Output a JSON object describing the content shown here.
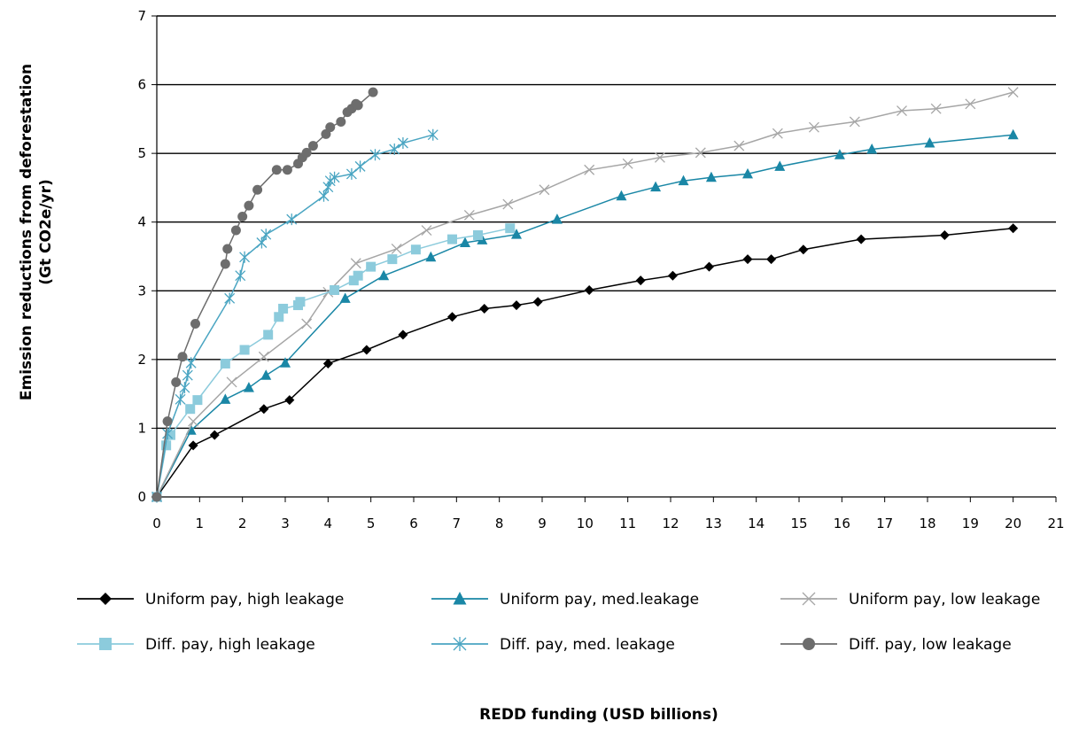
{
  "chart_data": {
    "type": "line",
    "xlabel": "REDD funding (USD billions)",
    "ylabel": [
      "Emission reductions from deforestation",
      "(Gt CO2e/yr)"
    ],
    "xlim": [
      0,
      21
    ],
    "ylim": [
      0,
      7
    ],
    "x_ticks": [
      "0",
      "1",
      "2",
      "3",
      "4",
      "5",
      "6",
      "7",
      "8",
      "9",
      "10",
      "11",
      "12",
      "13",
      "14",
      "15",
      "16",
      "17",
      "18",
      "19",
      "20",
      "21"
    ],
    "y_ticks": [
      "0",
      "1",
      "2",
      "3",
      "4",
      "5",
      "6",
      "7"
    ],
    "grid": "horizontal",
    "legend_position": "bottom",
    "series": [
      {
        "name": "Uniform pay, high leakage",
        "color": "#000000",
        "marker": "diamond",
        "points": [
          [
            0,
            0
          ],
          [
            0.85,
            0.75
          ],
          [
            1.35,
            0.9
          ],
          [
            2.5,
            1.28
          ],
          [
            3.1,
            1.41
          ],
          [
            4.0,
            1.94
          ],
          [
            4.9,
            2.14
          ],
          [
            5.75,
            2.36
          ],
          [
            6.9,
            2.62
          ],
          [
            7.65,
            2.74
          ],
          [
            8.4,
            2.79
          ],
          [
            8.9,
            2.84
          ],
          [
            10.1,
            3.01
          ],
          [
            11.3,
            3.15
          ],
          [
            12.05,
            3.22
          ],
          [
            12.9,
            3.35
          ],
          [
            13.8,
            3.46
          ],
          [
            14.35,
            3.46
          ],
          [
            15.1,
            3.6
          ],
          [
            16.45,
            3.75
          ],
          [
            18.4,
            3.81
          ],
          [
            20.0,
            3.91
          ]
        ]
      },
      {
        "name": "Uniform pay, med.leakage",
        "color": "#1a87a6",
        "marker": "triangle",
        "points": [
          [
            0,
            0
          ],
          [
            0.8,
            0.97
          ],
          [
            1.6,
            1.42
          ],
          [
            2.15,
            1.59
          ],
          [
            2.55,
            1.77
          ],
          [
            3.0,
            1.95
          ],
          [
            4.4,
            2.89
          ],
          [
            5.3,
            3.22
          ],
          [
            6.4,
            3.49
          ],
          [
            7.2,
            3.7
          ],
          [
            7.6,
            3.74
          ],
          [
            8.4,
            3.82
          ],
          [
            9.35,
            4.04
          ],
          [
            10.85,
            4.38
          ],
          [
            11.65,
            4.51
          ],
          [
            12.3,
            4.6
          ],
          [
            12.95,
            4.65
          ],
          [
            13.8,
            4.7
          ],
          [
            14.55,
            4.81
          ],
          [
            15.95,
            4.98
          ],
          [
            16.7,
            5.06
          ],
          [
            18.05,
            5.15
          ],
          [
            20.0,
            5.27
          ]
        ]
      },
      {
        "name": "Uniform pay, low leakage",
        "color": "#a6a6a6",
        "marker": "x",
        "points": [
          [
            0,
            0
          ],
          [
            0.85,
            1.1
          ],
          [
            1.75,
            1.67
          ],
          [
            2.5,
            2.04
          ],
          [
            3.5,
            2.52
          ],
          [
            4.0,
            2.98
          ],
          [
            4.65,
            3.4
          ],
          [
            5.6,
            3.61
          ],
          [
            6.3,
            3.88
          ],
          [
            7.3,
            4.1
          ],
          [
            8.2,
            4.26
          ],
          [
            9.05,
            4.47
          ],
          [
            10.1,
            4.76
          ],
          [
            11.0,
            4.85
          ],
          [
            11.75,
            4.94
          ],
          [
            12.7,
            5.01
          ],
          [
            13.6,
            5.11
          ],
          [
            14.5,
            5.29
          ],
          [
            15.35,
            5.38
          ],
          [
            16.3,
            5.46
          ],
          [
            17.4,
            5.62
          ],
          [
            18.2,
            5.65
          ],
          [
            19.0,
            5.72
          ],
          [
            20.0,
            5.89
          ]
        ]
      },
      {
        "name": "Diff. pay, high leakage",
        "color": "#8ccbdc",
        "marker": "square",
        "points": [
          [
            0,
            0
          ],
          [
            0.22,
            0.75
          ],
          [
            0.32,
            0.9
          ],
          [
            0.78,
            1.28
          ],
          [
            0.95,
            1.41
          ],
          [
            1.6,
            1.94
          ],
          [
            2.05,
            2.14
          ],
          [
            2.6,
            2.36
          ],
          [
            2.85,
            2.62
          ],
          [
            2.95,
            2.74
          ],
          [
            3.3,
            2.79
          ],
          [
            3.35,
            2.84
          ],
          [
            4.15,
            3.01
          ],
          [
            4.6,
            3.15
          ],
          [
            4.7,
            3.22
          ],
          [
            5.0,
            3.35
          ],
          [
            5.5,
            3.46
          ],
          [
            6.05,
            3.6
          ],
          [
            6.9,
            3.75
          ],
          [
            7.5,
            3.81
          ],
          [
            8.25,
            3.91
          ]
        ]
      },
      {
        "name": "Diff. pay, med. leakage",
        "color": "#4aa5c2",
        "marker": "asterisk",
        "points": [
          [
            0,
            0
          ],
          [
            0.25,
            0.92
          ],
          [
            0.55,
            1.42
          ],
          [
            0.65,
            1.59
          ],
          [
            0.72,
            1.77
          ],
          [
            0.8,
            1.95
          ],
          [
            1.7,
            2.89
          ],
          [
            1.95,
            3.22
          ],
          [
            2.05,
            3.49
          ],
          [
            2.45,
            3.7
          ],
          [
            2.55,
            3.82
          ],
          [
            3.15,
            4.04
          ],
          [
            3.9,
            4.38
          ],
          [
            4.0,
            4.51
          ],
          [
            4.05,
            4.6
          ],
          [
            4.15,
            4.65
          ],
          [
            4.55,
            4.7
          ],
          [
            4.75,
            4.81
          ],
          [
            5.1,
            4.98
          ],
          [
            5.55,
            5.06
          ],
          [
            5.75,
            5.15
          ],
          [
            6.45,
            5.27
          ]
        ]
      },
      {
        "name": "Diff. pay, low leakage",
        "color": "#6d6d6d",
        "marker": "circle",
        "points": [
          [
            0,
            0
          ],
          [
            0.25,
            1.1
          ],
          [
            0.45,
            1.67
          ],
          [
            0.6,
            2.04
          ],
          [
            0.9,
            2.52
          ],
          [
            1.6,
            3.39
          ],
          [
            1.65,
            3.61
          ],
          [
            1.85,
            3.88
          ],
          [
            2.0,
            4.08
          ],
          [
            2.15,
            4.24
          ],
          [
            2.35,
            4.47
          ],
          [
            2.8,
            4.76
          ],
          [
            3.05,
            4.76
          ],
          [
            3.3,
            4.85
          ],
          [
            3.4,
            4.94
          ],
          [
            3.5,
            5.01
          ],
          [
            3.65,
            5.11
          ],
          [
            3.95,
            5.28
          ],
          [
            4.05,
            5.38
          ],
          [
            4.3,
            5.46
          ],
          [
            4.45,
            5.6
          ],
          [
            4.55,
            5.65
          ],
          [
            4.65,
            5.72
          ],
          [
            4.7,
            5.7
          ],
          [
            5.05,
            5.89
          ]
        ]
      }
    ]
  }
}
